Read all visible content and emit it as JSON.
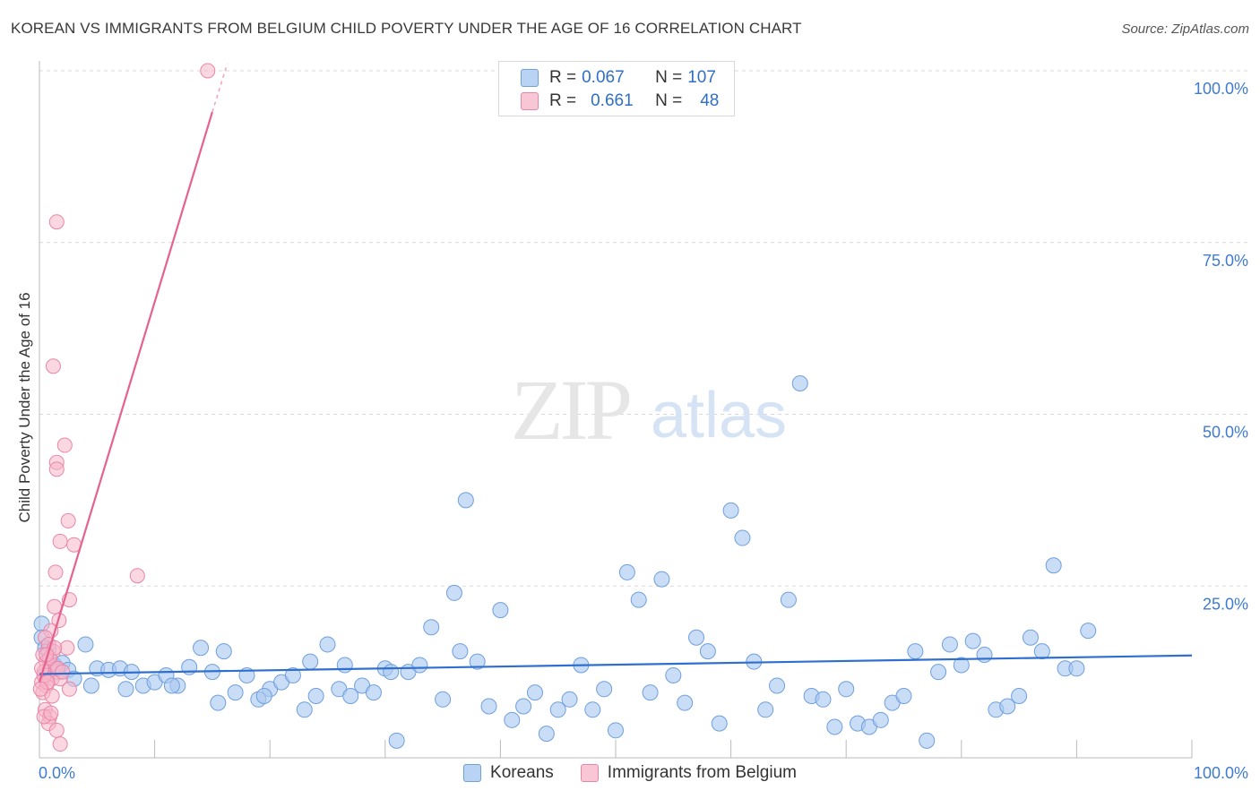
{
  "title": "KOREAN VS IMMIGRANTS FROM BELGIUM CHILD POVERTY UNDER THE AGE OF 16 CORRELATION CHART",
  "source": "Source: ZipAtlas.com",
  "watermark": {
    "zip": "ZIP",
    "atlas": "atlas"
  },
  "legend_top": {
    "rows": [
      {
        "r_label": "R =",
        "r_value": "0.067",
        "n_label": "N =",
        "n_value": "107"
      },
      {
        "r_label": "R =",
        "r_value": "0.661",
        "n_label": "N =",
        "n_value": "48"
      }
    ]
  },
  "legend_bottom": {
    "series1": "Koreans",
    "series2": "Immigrants from Belgium"
  },
  "colors": {
    "koreans_fill": "#a9c8f0",
    "koreans_stroke": "#6f9fdc",
    "koreans_line": "#2f6fd0",
    "belgium_fill": "#f7b6ca",
    "belgium_stroke": "#e886a6",
    "belgium_line": "#e5628f",
    "axis_text": "#3f7bd0",
    "grid": "#d9d9d9"
  },
  "chart_data": {
    "type": "scatter",
    "title": "KOREAN VS IMMIGRANTS FROM BELGIUM CHILD POVERTY UNDER THE AGE OF 16 CORRELATION CHART",
    "xlabel": "",
    "ylabel": "Child Poverty Under the Age of 16",
    "xlim": [
      0,
      100
    ],
    "ylim": [
      0,
      100
    ],
    "x_tick_labels": [
      "0.0%",
      "100.0%"
    ],
    "y_ticks": [
      25,
      50,
      75,
      100
    ],
    "y_tick_labels": [
      "25.0%",
      "50.0%",
      "75.0%",
      "100.0%"
    ],
    "grid": true,
    "series": [
      {
        "name": "Koreans",
        "R": 0.067,
        "N": 107,
        "trend": {
          "x": [
            0,
            100
          ],
          "y": [
            12.2,
            14.9
          ]
        },
        "points": [
          [
            0.2,
            19.5
          ],
          [
            0.2,
            17.5
          ],
          [
            0.5,
            16
          ],
          [
            0.8,
            15.8
          ],
          [
            1,
            14
          ],
          [
            1.3,
            13.5
          ],
          [
            1.6,
            12.5
          ],
          [
            2,
            13.8
          ],
          [
            2.5,
            12.8
          ],
          [
            3,
            11.5
          ],
          [
            4,
            16.5
          ],
          [
            5,
            13
          ],
          [
            6,
            12.8
          ],
          [
            7,
            13
          ],
          [
            8,
            12.5
          ],
          [
            9,
            10.5
          ],
          [
            10,
            11
          ],
          [
            11,
            12
          ],
          [
            12,
            10.5
          ],
          [
            13,
            13.2
          ],
          [
            14,
            16
          ],
          [
            15,
            12.5
          ],
          [
            16,
            15.5
          ],
          [
            17,
            9.5
          ],
          [
            18,
            12
          ],
          [
            19,
            8.5
          ],
          [
            20,
            10
          ],
          [
            21,
            11
          ],
          [
            22,
            12
          ],
          [
            23,
            7
          ],
          [
            24,
            9
          ],
          [
            25,
            16.5
          ],
          [
            26,
            10
          ],
          [
            27,
            9
          ],
          [
            28,
            10.5
          ],
          [
            29,
            9.5
          ],
          [
            30,
            13
          ],
          [
            31,
            2.5
          ],
          [
            32,
            12.5
          ],
          [
            33,
            13.5
          ],
          [
            34,
            19
          ],
          [
            35,
            8.5
          ],
          [
            36,
            24
          ],
          [
            37,
            37.5
          ],
          [
            38,
            14
          ],
          [
            39,
            7.5
          ],
          [
            40,
            21.5
          ],
          [
            41,
            5.5
          ],
          [
            42,
            7.5
          ],
          [
            43,
            9.5
          ],
          [
            44,
            3.5
          ],
          [
            45,
            7
          ],
          [
            46,
            8.5
          ],
          [
            47,
            13.5
          ],
          [
            48,
            7
          ],
          [
            49,
            10
          ],
          [
            50,
            4
          ],
          [
            51,
            27
          ],
          [
            52,
            23
          ],
          [
            53,
            9.5
          ],
          [
            54,
            26
          ],
          [
            55,
            12
          ],
          [
            56,
            8
          ],
          [
            57,
            17.5
          ],
          [
            58,
            15.5
          ],
          [
            59,
            5
          ],
          [
            60,
            36
          ],
          [
            61,
            32
          ],
          [
            62,
            14
          ],
          [
            63,
            7
          ],
          [
            64,
            10.5
          ],
          [
            65,
            23
          ],
          [
            66,
            54.5
          ],
          [
            67,
            9
          ],
          [
            68,
            8.5
          ],
          [
            69,
            4.5
          ],
          [
            70,
            10
          ],
          [
            71,
            5
          ],
          [
            72,
            4.5
          ],
          [
            73,
            5.5
          ],
          [
            74,
            8
          ],
          [
            75,
            9
          ],
          [
            76,
            15.5
          ],
          [
            77,
            2.5
          ],
          [
            78,
            12.5
          ],
          [
            79,
            16.5
          ],
          [
            80,
            13.5
          ],
          [
            81,
            17
          ],
          [
            82,
            15
          ],
          [
            83,
            7
          ],
          [
            84,
            7.5
          ],
          [
            85,
            9
          ],
          [
            86,
            17.5
          ],
          [
            87,
            15.5
          ],
          [
            88,
            28
          ],
          [
            89,
            13
          ],
          [
            90,
            13
          ],
          [
            91,
            18.5
          ],
          [
            4.5,
            10.5
          ],
          [
            7.5,
            10
          ],
          [
            11.5,
            10.5
          ],
          [
            15.5,
            8
          ],
          [
            19.5,
            9
          ],
          [
            23.5,
            14
          ],
          [
            26.5,
            13.5
          ],
          [
            30.5,
            12.5
          ],
          [
            36.5,
            15.5
          ]
        ]
      },
      {
        "name": "Immigrants from Belgium",
        "R": 0.661,
        "N": 48,
        "trend": {
          "x": [
            0,
            15
          ],
          "y": [
            11,
            94
          ]
        },
        "trend_dashed": {
          "x": [
            15,
            16.3
          ],
          "y": [
            94,
            101
          ]
        },
        "points": [
          [
            14.6,
            100
          ],
          [
            1.5,
            78
          ],
          [
            1.2,
            57
          ],
          [
            2.2,
            45.5
          ],
          [
            1.5,
            43
          ],
          [
            1.5,
            42
          ],
          [
            2.5,
            34.5
          ],
          [
            1.8,
            31.5
          ],
          [
            3,
            31
          ],
          [
            1.4,
            27
          ],
          [
            8.5,
            26.5
          ],
          [
            2.6,
            23
          ],
          [
            1.3,
            22
          ],
          [
            1.7,
            20
          ],
          [
            1,
            18.5
          ],
          [
            0.5,
            17.5
          ],
          [
            0.8,
            16.5
          ],
          [
            1.2,
            15.5
          ],
          [
            2.4,
            16
          ],
          [
            0.3,
            15
          ],
          [
            0.6,
            14
          ],
          [
            0.9,
            13.5
          ],
          [
            1.4,
            13
          ],
          [
            0.4,
            12.5
          ],
          [
            0.7,
            12
          ],
          [
            1.1,
            11.5
          ],
          [
            0.2,
            11
          ],
          [
            0.6,
            10.5
          ],
          [
            1.8,
            11.5
          ],
          [
            2.6,
            10
          ],
          [
            0.3,
            9.5
          ],
          [
            1.1,
            9
          ],
          [
            0.5,
            7
          ],
          [
            0.9,
            6
          ],
          [
            0.8,
            5
          ],
          [
            1.5,
            4
          ],
          [
            1.8,
            2
          ],
          [
            0.4,
            12
          ],
          [
            0.9,
            14.5
          ],
          [
            1.3,
            16
          ],
          [
            0.2,
            13
          ],
          [
            0.7,
            11
          ],
          [
            0.1,
            10
          ],
          [
            0.6,
            15
          ],
          [
            1.6,
            13
          ],
          [
            2,
            12.5
          ],
          [
            0.4,
            6
          ],
          [
            1,
            6.5
          ]
        ]
      }
    ]
  }
}
